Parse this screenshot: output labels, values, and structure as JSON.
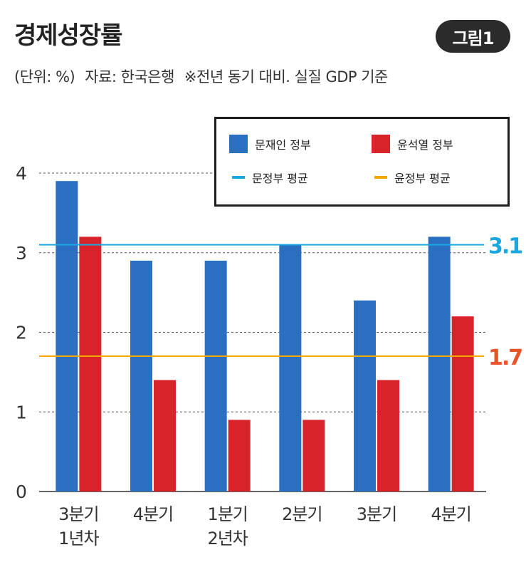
{
  "header": {
    "title": "경제성장률",
    "badge": "그림1",
    "unit": "(단위: %)",
    "source": "자료: 한국은행",
    "note": "※전년 동기 대비. 실질 GDP 기준"
  },
  "legend": {
    "series_moon": "문재인 정부",
    "series_yoon": "윤석열 정부",
    "avg_moon": "문정부 평균",
    "avg_yoon": "윤정부 평균"
  },
  "colors": {
    "moon": "#2a6fc0",
    "yoon": "#d8232a",
    "avg_moon": "#1aa6e0",
    "avg_yoon": "#f5a800",
    "avg_yoon_label": "#e8542a"
  },
  "chart_data": {
    "type": "bar",
    "categories": [
      [
        "3분기",
        "1년차"
      ],
      [
        "4분기"
      ],
      [
        "1분기",
        "2년차"
      ],
      [
        "2분기"
      ],
      [
        "3분기"
      ],
      [
        "4분기"
      ]
    ],
    "series": [
      {
        "name": "문재인 정부",
        "values": [
          3.9,
          2.9,
          2.9,
          3.1,
          2.4,
          3.2
        ]
      },
      {
        "name": "윤석열 정부",
        "values": [
          3.2,
          1.4,
          0.9,
          0.9,
          1.4,
          2.2
        ]
      }
    ],
    "reference_lines": [
      {
        "name": "문정부 평균",
        "value": 3.1,
        "label": "3.1"
      },
      {
        "name": "윤정부 평균",
        "value": 1.7,
        "label": "1.7"
      }
    ],
    "yticks": [
      "0",
      "1",
      "2",
      "3",
      "4"
    ],
    "ylim": [
      0,
      4
    ],
    "grid": true,
    "legend_position": "top-right"
  }
}
